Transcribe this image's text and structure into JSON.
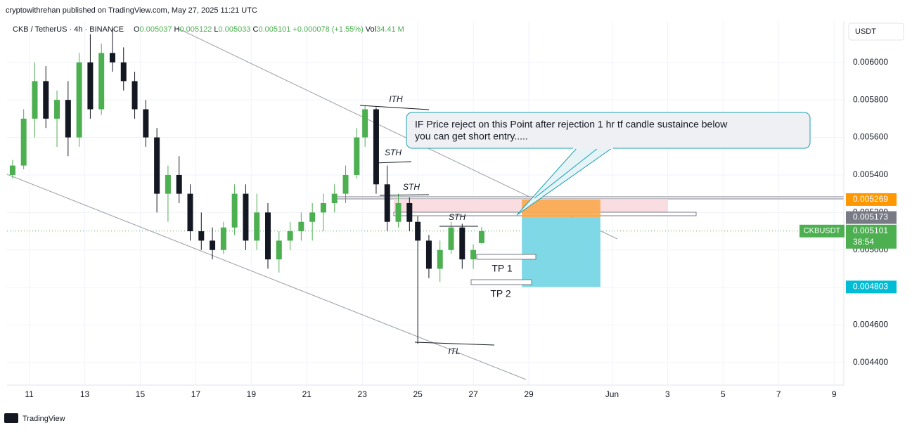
{
  "header": {
    "publisher": "cryptowithrehan published on TradingView.com, May 27, 2025 11:21 UTC",
    "symbol": "CKB / TetherUS · 4h · BINANCE",
    "o_label": "O",
    "h_label": "H",
    "l_label": "L",
    "c_label": "C",
    "change": "+0.000078 (+1.55%)",
    "vol_label": "Vol",
    "vol": "34.41 M",
    "currency": "USDT"
  },
  "footer": {
    "brand": "TradingView"
  },
  "chart_data": {
    "type": "candlestick",
    "x": [
      10.4,
      10.8,
      11.2,
      11.6,
      12.0,
      12.4,
      12.8,
      13.2,
      13.6,
      14.0,
      14.4,
      14.8,
      15.2,
      15.6,
      16.0,
      16.4,
      16.8,
      17.2,
      17.6,
      18.0,
      18.4,
      18.8,
      19.2,
      19.6,
      20.0,
      20.4,
      20.8,
      21.2,
      21.6,
      22.0,
      22.4,
      22.8,
      23.1,
      23.5,
      23.9,
      24.3,
      24.7,
      25.0,
      25.4,
      25.8,
      26.2,
      26.6,
      27.0,
      27.3
    ],
    "open": [
      0.0054,
      0.00545,
      0.0057,
      0.0059,
      0.0057,
      0.0058,
      0.0056,
      0.006,
      0.00575,
      0.00605,
      0.006,
      0.0059,
      0.00575,
      0.0056,
      0.0053,
      0.0054,
      0.0053,
      0.0051,
      0.00505,
      0.005,
      0.00512,
      0.0053,
      0.00505,
      0.0052,
      0.00495,
      0.00505,
      0.0051,
      0.00515,
      0.0052,
      0.00525,
      0.0053,
      0.0054,
      0.0056,
      0.00575,
      0.00535,
      0.00515,
      0.00525,
      0.00515,
      0.00505,
      0.0049,
      0.005,
      0.00512,
      0.00495,
      0.005037
    ],
    "high": [
      0.00548,
      0.00575,
      0.006,
      0.00598,
      0.00585,
      0.0059,
      0.00605,
      0.00615,
      0.0061,
      0.00618,
      0.00608,
      0.00595,
      0.0058,
      0.00565,
      0.00545,
      0.0055,
      0.00535,
      0.0052,
      0.00512,
      0.00515,
      0.00535,
      0.00535,
      0.0053,
      0.00525,
      0.0051,
      0.00515,
      0.0052,
      0.00525,
      0.0053,
      0.00535,
      0.00545,
      0.00565,
      0.00577,
      0.00576,
      0.00545,
      0.0053,
      0.00528,
      0.00518,
      0.00508,
      0.00505,
      0.00515,
      0.00514,
      0.00503,
      0.005122
    ],
    "low": [
      0.00538,
      0.00543,
      0.0056,
      0.00565,
      0.00555,
      0.0055,
      0.00555,
      0.0057,
      0.00572,
      0.00595,
      0.00585,
      0.0057,
      0.00555,
      0.0052,
      0.00515,
      0.00525,
      0.00505,
      0.005,
      0.00495,
      0.00498,
      0.00508,
      0.005,
      0.005,
      0.0049,
      0.00488,
      0.005,
      0.00505,
      0.00505,
      0.0051,
      0.0052,
      0.00525,
      0.00538,
      0.00555,
      0.0053,
      0.0051,
      0.00512,
      0.0051,
      0.0045,
      0.00485,
      0.00483,
      0.00498,
      0.0049,
      0.0049,
      0.005033
    ],
    "close": [
      0.00545,
      0.0057,
      0.0059,
      0.0057,
      0.0058,
      0.0056,
      0.006,
      0.00575,
      0.00605,
      0.006,
      0.0059,
      0.00575,
      0.0056,
      0.0053,
      0.0054,
      0.0053,
      0.0051,
      0.00505,
      0.005,
      0.00512,
      0.0053,
      0.00505,
      0.0052,
      0.00495,
      0.00505,
      0.0051,
      0.00515,
      0.0052,
      0.00525,
      0.0053,
      0.0054,
      0.0056,
      0.00575,
      0.00535,
      0.00515,
      0.00525,
      0.00515,
      0.00505,
      0.0049,
      0.005,
      0.00512,
      0.00495,
      0.005,
      0.005101
    ],
    "up_color": "#4caf50",
    "down_color": "#131722",
    "ylim": [
      0.00428,
      0.00622
    ],
    "yticks": [
      {
        "value": 0.0044,
        "label": "0.004400"
      },
      {
        "value": 0.0046,
        "label": "0.004600"
      },
      {
        "value": 0.0048,
        "label": "0.004800"
      },
      {
        "value": 0.005,
        "label": "0.005000"
      },
      {
        "value": 0.0052,
        "label": "0.005200"
      },
      {
        "value": 0.0054,
        "label": "0.005400"
      },
      {
        "value": 0.0056,
        "label": "0.005600"
      },
      {
        "value": 0.0058,
        "label": "0.005800"
      },
      {
        "value": 0.006,
        "label": "0.006000"
      }
    ],
    "xlim": [
      10.2,
      40.35
    ],
    "xticks": [
      11,
      13,
      15,
      17,
      19,
      21,
      23,
      25,
      27,
      29,
      {
        "value": 32,
        "label": "Jun"
      },
      {
        "value": 34,
        "label": "3"
      },
      {
        "value": 36,
        "label": "5"
      },
      {
        "value": 38,
        "label": "7"
      },
      {
        "value": 40,
        "label": "9"
      }
    ],
    "price_tags": [
      {
        "value": 0.005269,
        "color": "#ff9800"
      },
      {
        "value": 0.005173,
        "color": "#787b86"
      },
      {
        "value": 0.004803,
        "color": "#00bcd4"
      }
    ],
    "last_price": {
      "name": "CKBUSDT",
      "value": 0.005101,
      "countdown": "38:54",
      "color": "#4caf50"
    },
    "position": {
      "x": [
        28.75,
        31.58
      ],
      "entry": 0.005173,
      "stop": 0.005269,
      "target": 0.004803
    },
    "annotations": {
      "ith": "ITH",
      "sth1": "STH",
      "sth2": "STH",
      "sth3": "STH",
      "itl": "ITL",
      "tp1": "TP 1",
      "tp2": "TP 2",
      "callout_1": "IF Price reject on this Point after rejection 1 hr tf candle sustaince below",
      "callout_2": "you can get short entry....."
    }
  }
}
